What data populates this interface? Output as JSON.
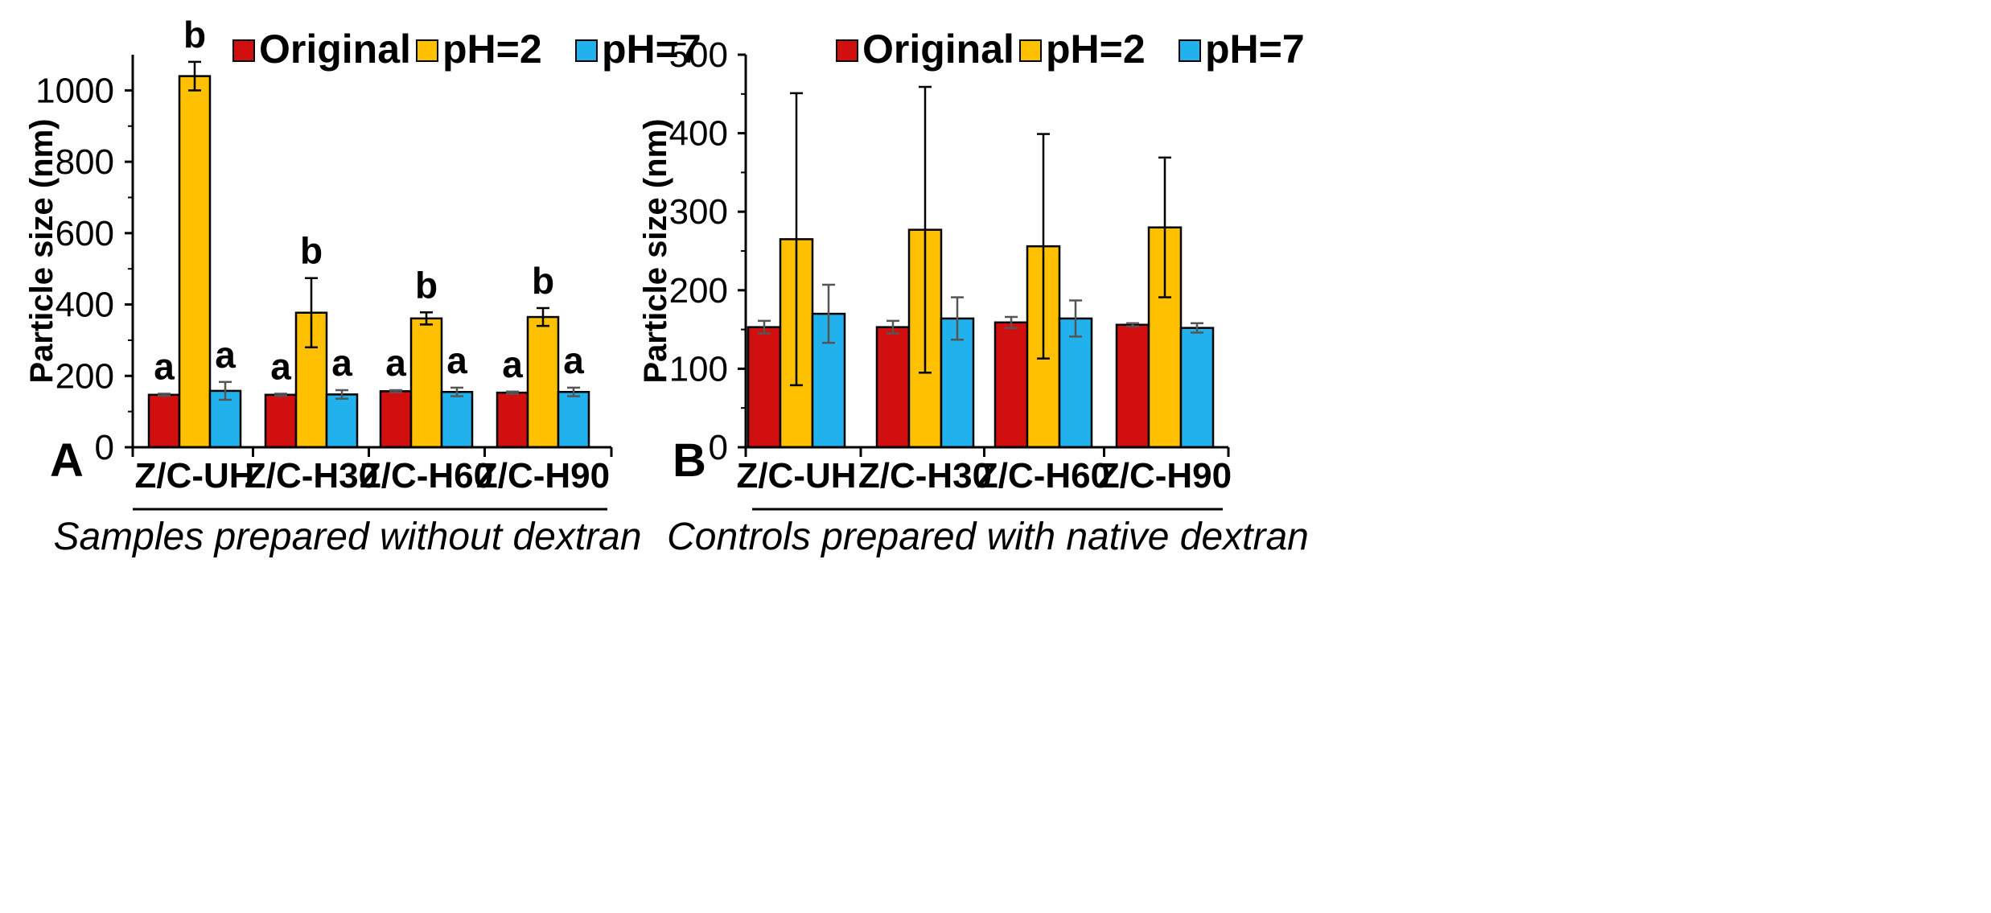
{
  "colors": {
    "Original": "#d10f0f",
    "pH=2": "#ffc000",
    "pH=7": "#21b2ee",
    "axis": "#000000",
    "errorbar_dark": "#000000",
    "errorbar_gray": "#555555"
  },
  "chart_data": [
    {
      "panel_letter": "A",
      "type": "bar",
      "title": "",
      "ylabel": "Particle size (nm)",
      "xlabel": "",
      "ylim": [
        0,
        1100
      ],
      "yticks": [
        0,
        200,
        400,
        600,
        800,
        1000
      ],
      "categories": [
        "Z/C-UH",
        "Z/C-H30",
        "Z/C-H60",
        "Z/C-H90"
      ],
      "series": [
        {
          "name": "Original",
          "values": [
            147,
            147,
            157,
            153
          ],
          "errors": [
            3,
            3,
            3,
            3
          ],
          "labels": [
            "a",
            "a",
            "a",
            "a"
          ]
        },
        {
          "name": "pH=2",
          "values": [
            1040,
            377,
            361,
            365
          ],
          "errors": [
            40,
            97,
            17,
            25
          ],
          "labels": [
            "b",
            "b",
            "b",
            "b"
          ]
        },
        {
          "name": "pH=7",
          "values": [
            158,
            148,
            155,
            155
          ],
          "errors": [
            25,
            12,
            12,
            12
          ],
          "labels": [
            "a",
            "a",
            "a",
            "a"
          ]
        }
      ],
      "legend": [
        "Original",
        "pH=2",
        "pH=7"
      ],
      "legend_position": "top",
      "grid": false,
      "caption": "Samples prepared without dextran"
    },
    {
      "panel_letter": "B",
      "type": "bar",
      "title": "",
      "ylabel": "Particle size (nm)",
      "xlabel": "",
      "ylim": [
        0,
        500
      ],
      "yticks": [
        0,
        100,
        200,
        300,
        400,
        500
      ],
      "categories": [
        "Z/C-UH",
        "Z/C-H30",
        "Z/C-H60",
        "Z/C-H90"
      ],
      "series": [
        {
          "name": "Original",
          "values": [
            153,
            153,
            159,
            156
          ],
          "errors": [
            8,
            8,
            7,
            2
          ]
        },
        {
          "name": "pH=2",
          "values": [
            265,
            277,
            256,
            280
          ],
          "errors": [
            186,
            182,
            143,
            89
          ]
        },
        {
          "name": "pH=7",
          "values": [
            170,
            164,
            164,
            152
          ],
          "errors": [
            37,
            27,
            23,
            6
          ]
        }
      ],
      "legend": [
        "Original",
        "pH=2",
        "pH=7"
      ],
      "legend_position": "top",
      "grid": false,
      "caption": "Controls prepared with native dextran"
    }
  ]
}
